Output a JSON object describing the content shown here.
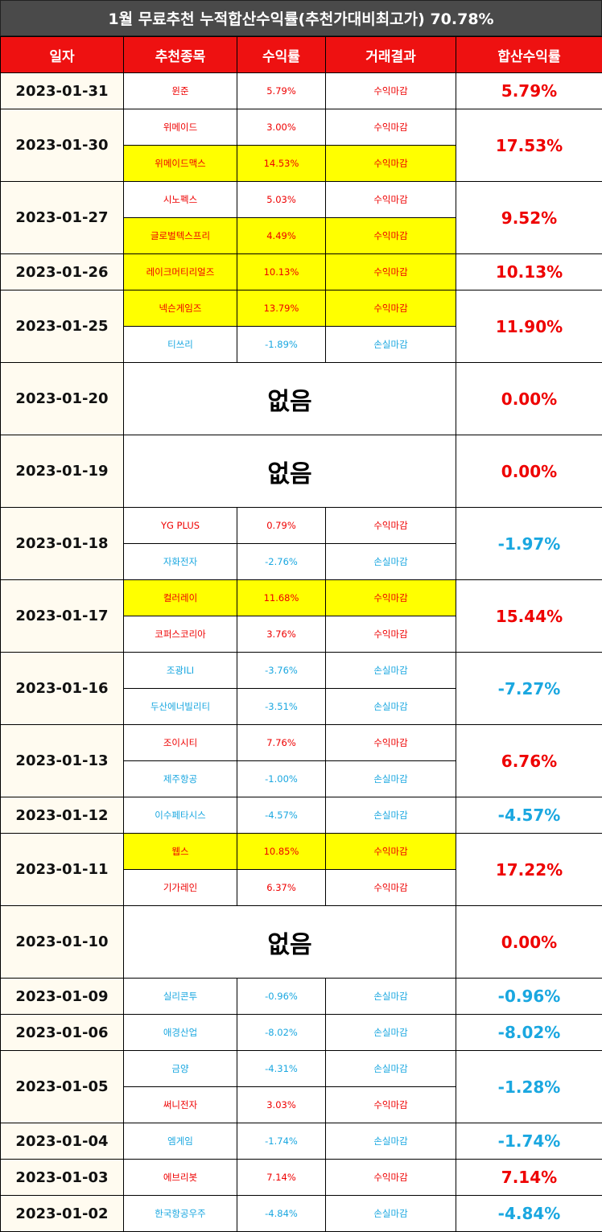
{
  "title": "1월 무료추천 누적합산수익률(추천가대비최고가) 70.78%",
  "headers": [
    "일자",
    "추천종목",
    "수익률",
    "거래결과",
    "합산수익률"
  ],
  "groups": [
    {
      "date": "2023-01-31",
      "sum": "5.79%",
      "sum_type": "profit",
      "rows": [
        {
          "stock": "윈준",
          "rate": "5.79%",
          "result": "수익마감",
          "type": "profit",
          "hl": false
        }
      ]
    },
    {
      "date": "2023-01-30",
      "sum": "17.53%",
      "sum_type": "profit",
      "rows": [
        {
          "stock": "위메이드",
          "rate": "3.00%",
          "result": "수익마감",
          "type": "profit",
          "hl": false
        },
        {
          "stock": "위메이드맥스",
          "rate": "14.53%",
          "result": "수익마감",
          "type": "profit",
          "hl": true
        }
      ]
    },
    {
      "date": "2023-01-27",
      "sum": "9.52%",
      "sum_type": "profit",
      "rows": [
        {
          "stock": "시노펙스",
          "rate": "5.03%",
          "result": "수익마감",
          "type": "profit",
          "hl": false
        },
        {
          "stock": "글로벌텍스프리",
          "rate": "4.49%",
          "result": "수익마감",
          "type": "profit",
          "hl": true
        }
      ]
    },
    {
      "date": "2023-01-26",
      "sum": "10.13%",
      "sum_type": "profit",
      "rows": [
        {
          "stock": "레이크머티리얼즈",
          "rate": "10.13%",
          "result": "수익마감",
          "type": "profit",
          "hl": true
        }
      ]
    },
    {
      "date": "2023-01-25",
      "sum": "11.90%",
      "sum_type": "profit",
      "rows": [
        {
          "stock": "넥슨게임즈",
          "rate": "13.79%",
          "result": "수익마감",
          "type": "profit",
          "hl": true
        },
        {
          "stock": "티쓰리",
          "rate": "-1.89%",
          "result": "손실마감",
          "type": "loss",
          "hl": false
        }
      ]
    },
    {
      "date": "2023-01-20",
      "sum": "0.00%",
      "sum_type": "profit",
      "none": "없음",
      "rows": []
    },
    {
      "date": "2023-01-19",
      "sum": "0.00%",
      "sum_type": "profit",
      "none": "없음",
      "rows": []
    },
    {
      "date": "2023-01-18",
      "sum": "-1.97%",
      "sum_type": "loss",
      "rows": [
        {
          "stock": "YG PLUS",
          "rate": "0.79%",
          "result": "수익마감",
          "type": "profit",
          "hl": false
        },
        {
          "stock": "자화전자",
          "rate": "-2.76%",
          "result": "손실마감",
          "type": "loss",
          "hl": false
        }
      ]
    },
    {
      "date": "2023-01-17",
      "sum": "15.44%",
      "sum_type": "profit",
      "rows": [
        {
          "stock": "컬러레이",
          "rate": "11.68%",
          "result": "수익마감",
          "type": "profit",
          "hl": true
        },
        {
          "stock": "코퍼스코리아",
          "rate": "3.76%",
          "result": "수익마감",
          "type": "profit",
          "hl": false
        }
      ]
    },
    {
      "date": "2023-01-16",
      "sum": "-7.27%",
      "sum_type": "loss",
      "rows": [
        {
          "stock": "조광ILI",
          "rate": "-3.76%",
          "result": "손실마감",
          "type": "loss",
          "hl": false
        },
        {
          "stock": "두산에너빌리티",
          "rate": "-3.51%",
          "result": "손실마감",
          "type": "loss",
          "hl": false
        }
      ]
    },
    {
      "date": "2023-01-13",
      "sum": "6.76%",
      "sum_type": "profit",
      "rows": [
        {
          "stock": "조이시티",
          "rate": "7.76%",
          "result": "수익마감",
          "type": "profit",
          "hl": false
        },
        {
          "stock": "제주항공",
          "rate": "-1.00%",
          "result": "손실마감",
          "type": "loss",
          "hl": false
        }
      ]
    },
    {
      "date": "2023-01-12",
      "sum": "-4.57%",
      "sum_type": "loss",
      "rows": [
        {
          "stock": "이수페타시스",
          "rate": "-4.57%",
          "result": "손실마감",
          "type": "loss",
          "hl": false
        }
      ]
    },
    {
      "date": "2023-01-11",
      "sum": "17.22%",
      "sum_type": "profit",
      "rows": [
        {
          "stock": "웹스",
          "rate": "10.85%",
          "result": "수익마감",
          "type": "profit",
          "hl": true
        },
        {
          "stock": "기가레인",
          "rate": "6.37%",
          "result": "수익마감",
          "type": "profit",
          "hl": false
        }
      ]
    },
    {
      "date": "2023-01-10",
      "sum": "0.00%",
      "sum_type": "profit",
      "none": "없음",
      "rows": []
    },
    {
      "date": "2023-01-09",
      "sum": "-0.96%",
      "sum_type": "loss",
      "rows": [
        {
          "stock": "실리콘투",
          "rate": "-0.96%",
          "result": "손실마감",
          "type": "loss",
          "hl": false
        }
      ]
    },
    {
      "date": "2023-01-06",
      "sum": "-8.02%",
      "sum_type": "loss",
      "rows": [
        {
          "stock": "애경산업",
          "rate": "-8.02%",
          "result": "손실마감",
          "type": "loss",
          "hl": false
        }
      ]
    },
    {
      "date": "2023-01-05",
      "sum": "-1.28%",
      "sum_type": "loss",
      "rows": [
        {
          "stock": "금양",
          "rate": "-4.31%",
          "result": "손실마감",
          "type": "loss",
          "hl": false
        },
        {
          "stock": "써니전자",
          "rate": "3.03%",
          "result": "수익마감",
          "type": "profit",
          "hl": false
        }
      ]
    },
    {
      "date": "2023-01-04",
      "sum": "-1.74%",
      "sum_type": "loss",
      "rows": [
        {
          "stock": "엠게임",
          "rate": "-1.74%",
          "result": "손실마감",
          "type": "loss",
          "hl": false
        }
      ]
    },
    {
      "date": "2023-01-03",
      "sum": "7.14%",
      "sum_type": "profit",
      "rows": [
        {
          "stock": "에브리봇",
          "rate": "7.14%",
          "result": "수익마감",
          "type": "profit",
          "hl": false
        }
      ]
    },
    {
      "date": "2023-01-02",
      "sum": "-4.84%",
      "sum_type": "loss",
      "rows": [
        {
          "stock": "한국항공우주",
          "rate": "-4.84%",
          "result": "손실마감",
          "type": "loss",
          "hl": false
        }
      ]
    }
  ]
}
